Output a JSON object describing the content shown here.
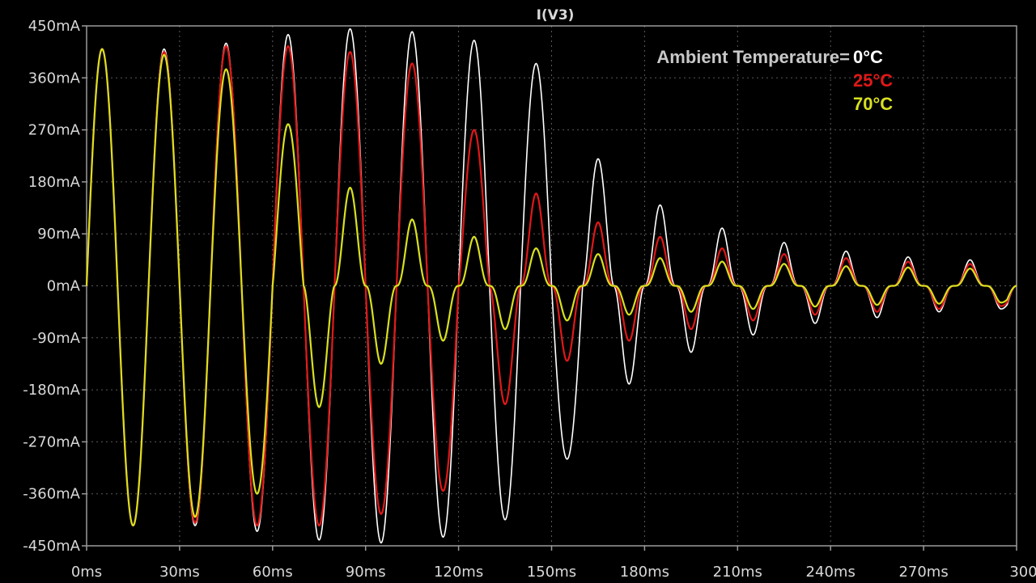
{
  "chart_data": {
    "type": "line",
    "title": "I(V3)",
    "xlabel": "",
    "ylabel": "",
    "xlim": [
      0,
      300
    ],
    "ylim": [
      -450,
      450
    ],
    "x_unit": "ms",
    "y_unit": "mA",
    "x_ticks": [
      "0ms",
      "30ms",
      "60ms",
      "90ms",
      "120ms",
      "150ms",
      "180ms",
      "210ms",
      "240ms",
      "270ms",
      "300ms"
    ],
    "y_ticks": [
      "450mA",
      "360mA",
      "270mA",
      "180mA",
      "90mA",
      "0mA",
      "-90mA",
      "-180mA",
      "-270mA",
      "-360mA",
      "-450mA"
    ],
    "grid": true,
    "legend": {
      "title": "Ambient Temperature=",
      "placement": "top-right"
    },
    "series": [
      {
        "name": "0°C",
        "color": "#ffffff",
        "peaks": [
          {
            "t": 5,
            "i": 410
          },
          {
            "t": 15,
            "i": -415
          },
          {
            "t": 25,
            "i": 410
          },
          {
            "t": 35,
            "i": -415
          },
          {
            "t": 45,
            "i": 420
          },
          {
            "t": 55,
            "i": -425
          },
          {
            "t": 65,
            "i": 435
          },
          {
            "t": 75,
            "i": -440
          },
          {
            "t": 85,
            "i": 445
          },
          {
            "t": 95,
            "i": -445
          },
          {
            "t": 105,
            "i": 440
          },
          {
            "t": 115,
            "i": -435
          },
          {
            "t": 125,
            "i": 425
          },
          {
            "t": 135,
            "i": -405
          },
          {
            "t": 145,
            "i": 385
          },
          {
            "t": 155,
            "i": -300
          },
          {
            "t": 165,
            "i": 220
          },
          {
            "t": 175,
            "i": -170
          },
          {
            "t": 185,
            "i": 140
          },
          {
            "t": 195,
            "i": -115
          },
          {
            "t": 205,
            "i": 100
          },
          {
            "t": 215,
            "i": -85
          },
          {
            "t": 225,
            "i": 75
          },
          {
            "t": 235,
            "i": -65
          },
          {
            "t": 245,
            "i": 60
          },
          {
            "t": 255,
            "i": -55
          },
          {
            "t": 265,
            "i": 50
          },
          {
            "t": 275,
            "i": -45
          },
          {
            "t": 285,
            "i": 45
          },
          {
            "t": 295,
            "i": -40
          }
        ]
      },
      {
        "name": "25°C",
        "color": "#e01818",
        "peaks": [
          {
            "t": 5,
            "i": 410
          },
          {
            "t": 15,
            "i": -415
          },
          {
            "t": 25,
            "i": 405
          },
          {
            "t": 35,
            "i": -410
          },
          {
            "t": 45,
            "i": 415
          },
          {
            "t": 55,
            "i": -415
          },
          {
            "t": 65,
            "i": 415
          },
          {
            "t": 75,
            "i": -415
          },
          {
            "t": 85,
            "i": 405
          },
          {
            "t": 95,
            "i": -395
          },
          {
            "t": 105,
            "i": 385
          },
          {
            "t": 115,
            "i": -355
          },
          {
            "t": 125,
            "i": 270
          },
          {
            "t": 135,
            "i": -205
          },
          {
            "t": 145,
            "i": 160
          },
          {
            "t": 155,
            "i": -130
          },
          {
            "t": 165,
            "i": 110
          },
          {
            "t": 175,
            "i": -95
          },
          {
            "t": 185,
            "i": 85
          },
          {
            "t": 195,
            "i": -75
          },
          {
            "t": 205,
            "i": 65
          },
          {
            "t": 215,
            "i": -60
          },
          {
            "t": 225,
            "i": 55
          },
          {
            "t": 235,
            "i": -50
          },
          {
            "t": 245,
            "i": 48
          },
          {
            "t": 255,
            "i": -45
          },
          {
            "t": 265,
            "i": 42
          },
          {
            "t": 275,
            "i": -40
          },
          {
            "t": 285,
            "i": 38
          },
          {
            "t": 295,
            "i": -35
          }
        ]
      },
      {
        "name": "70°C",
        "color": "#d8e020",
        "peaks": [
          {
            "t": 5,
            "i": 410
          },
          {
            "t": 15,
            "i": -415
          },
          {
            "t": 25,
            "i": 400
          },
          {
            "t": 35,
            "i": -400
          },
          {
            "t": 45,
            "i": 375
          },
          {
            "t": 55,
            "i": -360
          },
          {
            "t": 65,
            "i": 280
          },
          {
            "t": 75,
            "i": -210
          },
          {
            "t": 85,
            "i": 170
          },
          {
            "t": 95,
            "i": -135
          },
          {
            "t": 105,
            "i": 115
          },
          {
            "t": 115,
            "i": -95
          },
          {
            "t": 125,
            "i": 85
          },
          {
            "t": 135,
            "i": -75
          },
          {
            "t": 145,
            "i": 65
          },
          {
            "t": 155,
            "i": -60
          },
          {
            "t": 165,
            "i": 55
          },
          {
            "t": 175,
            "i": -50
          },
          {
            "t": 185,
            "i": 48
          },
          {
            "t": 195,
            "i": -45
          },
          {
            "t": 205,
            "i": 42
          },
          {
            "t": 215,
            "i": -40
          },
          {
            "t": 225,
            "i": 38
          },
          {
            "t": 235,
            "i": -36
          },
          {
            "t": 245,
            "i": 34
          },
          {
            "t": 255,
            "i": -33
          },
          {
            "t": 265,
            "i": 32
          },
          {
            "t": 275,
            "i": -31
          },
          {
            "t": 285,
            "i": 30
          },
          {
            "t": 295,
            "i": -29
          }
        ]
      }
    ]
  },
  "colors": {
    "background": "#000000",
    "axis": "#9a9a9a",
    "grid": "#5a5a5a",
    "text": "#d8d8d8"
  }
}
